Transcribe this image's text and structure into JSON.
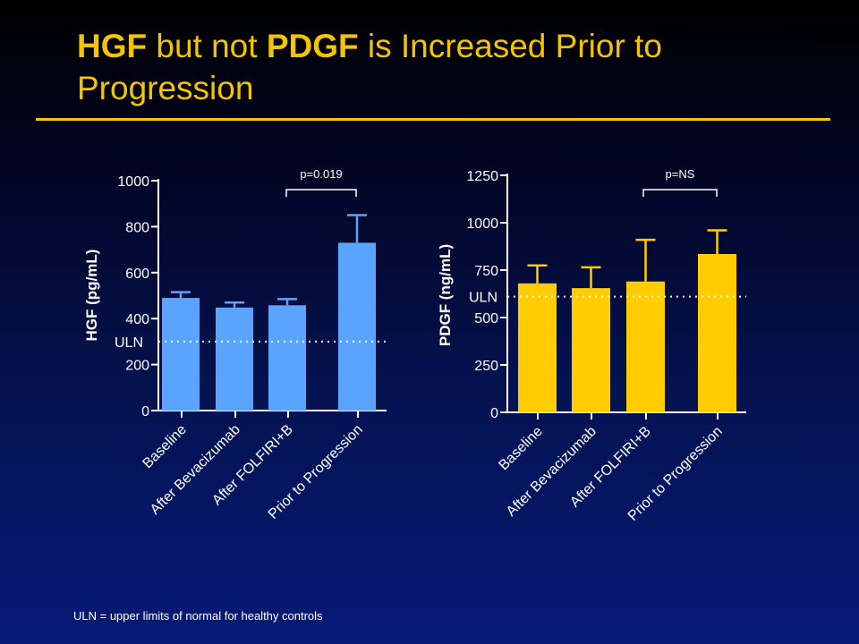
{
  "slide": {
    "title_parts": [
      {
        "text": "HGF",
        "bold": true
      },
      {
        "text": " but not ",
        "bold": false
      },
      {
        "text": "PDGF",
        "bold": true
      },
      {
        "text": " is Increased Prior to Progression",
        "bold": false
      }
    ],
    "footnote": "ULN = upper limits of normal for healthy controls",
    "colors": {
      "title": "#f5c400",
      "rule": "#f5c400",
      "hgf_bar": "#5aa3ff",
      "pdgf_bar": "#ffcc00",
      "text": "#ffffff"
    }
  },
  "chart_data": [
    {
      "type": "bar",
      "categories": [
        "Baseline",
        "After Bevacizumab",
        "After FOLFIRI+B",
        "Prior to Progression"
      ],
      "values": [
        490,
        448,
        458,
        730
      ],
      "error_upper": [
        515,
        470,
        485,
        850
      ],
      "ylabel": "HGF (pg/mL)",
      "ylim": [
        0,
        1000
      ],
      "yticks": [
        0,
        200,
        400,
        600,
        800,
        1000
      ],
      "reference_line": {
        "label": "ULN",
        "value": 300
      },
      "annotation": {
        "text": "p=0.019",
        "from": 2,
        "to": 3
      },
      "bar_color": "#5aa3ff"
    },
    {
      "type": "bar",
      "categories": [
        "Baseline",
        "After Bevacizumab",
        "After FOLFIRI+B",
        "Prior to Progression"
      ],
      "values": [
        680,
        655,
        690,
        835
      ],
      "error_upper": [
        775,
        765,
        910,
        960
      ],
      "ylabel": "PDGF (ng/mL)",
      "ylim": [
        0,
        1250
      ],
      "yticks": [
        0,
        250,
        500,
        750,
        1000,
        1250
      ],
      "reference_line": {
        "label": "ULN",
        "value": 610
      },
      "annotation": {
        "text": "p=NS",
        "from": 2,
        "to": 3
      },
      "bar_color": "#ffcc00"
    }
  ]
}
